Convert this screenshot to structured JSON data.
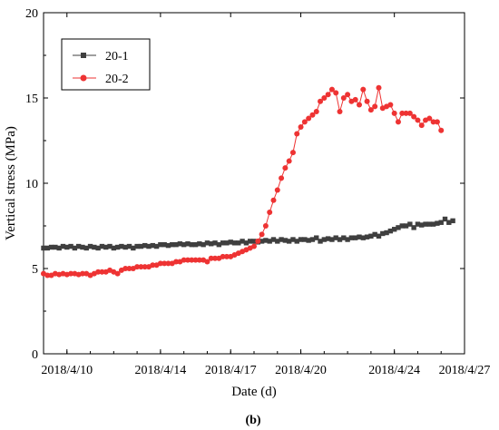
{
  "chart_data": {
    "type": "line",
    "title": "",
    "xlabel": "Date (d)",
    "ylabel": "Vertical stress (MPa)",
    "panel_label": "(b)",
    "xlim": [
      "2018-04-09",
      "2018-04-27"
    ],
    "ylim": [
      0,
      20
    ],
    "x_ticks": [
      {
        "date": "2018-04-10",
        "label": "2018/4/10"
      },
      {
        "date": "2018-04-14",
        "label": "2018/4/14"
      },
      {
        "date": "2018-04-17",
        "label": "2018/4/17"
      },
      {
        "date": "2018-04-20",
        "label": "2018/4/20"
      },
      {
        "date": "2018-04-24",
        "label": "2018/4/24"
      },
      {
        "date": "2018-04-27",
        "label": "2018/4/27"
      }
    ],
    "y_ticks": [
      0,
      5,
      10,
      15,
      20
    ],
    "legend_position": "top-left",
    "series": [
      {
        "name": "20-1",
        "color": "#3f3f3f",
        "marker": "square",
        "x": [
          "2018-04-09",
          "2018-04-09 04:00",
          "2018-04-09 08:00",
          "2018-04-09 12:00",
          "2018-04-09 16:00",
          "2018-04-09 20:00",
          "2018-04-10",
          "2018-04-10 04:00",
          "2018-04-10 08:00",
          "2018-04-10 12:00",
          "2018-04-10 16:00",
          "2018-04-10 20:00",
          "2018-04-11",
          "2018-04-11 04:00",
          "2018-04-11 08:00",
          "2018-04-11 12:00",
          "2018-04-11 16:00",
          "2018-04-11 20:00",
          "2018-04-12",
          "2018-04-12 04:00",
          "2018-04-12 08:00",
          "2018-04-12 12:00",
          "2018-04-12 16:00",
          "2018-04-12 20:00",
          "2018-04-13",
          "2018-04-13 04:00",
          "2018-04-13 08:00",
          "2018-04-13 12:00",
          "2018-04-13 16:00",
          "2018-04-13 20:00",
          "2018-04-14",
          "2018-04-14 04:00",
          "2018-04-14 08:00",
          "2018-04-14 12:00",
          "2018-04-14 16:00",
          "2018-04-14 20:00",
          "2018-04-15",
          "2018-04-15 04:00",
          "2018-04-15 08:00",
          "2018-04-15 12:00",
          "2018-04-15 16:00",
          "2018-04-15 20:00",
          "2018-04-16",
          "2018-04-16 04:00",
          "2018-04-16 08:00",
          "2018-04-16 12:00",
          "2018-04-16 16:00",
          "2018-04-16 20:00",
          "2018-04-17",
          "2018-04-17 04:00",
          "2018-04-17 08:00",
          "2018-04-17 12:00",
          "2018-04-17 16:00",
          "2018-04-17 20:00",
          "2018-04-18",
          "2018-04-18 04:00",
          "2018-04-18 08:00",
          "2018-04-18 12:00",
          "2018-04-18 16:00",
          "2018-04-18 20:00",
          "2018-04-19",
          "2018-04-19 04:00",
          "2018-04-19 08:00",
          "2018-04-19 12:00",
          "2018-04-19 16:00",
          "2018-04-19 20:00",
          "2018-04-20",
          "2018-04-20 04:00",
          "2018-04-20 08:00",
          "2018-04-20 12:00",
          "2018-04-20 16:00",
          "2018-04-20 20:00",
          "2018-04-21",
          "2018-04-21 04:00",
          "2018-04-21 08:00",
          "2018-04-21 12:00",
          "2018-04-21 16:00",
          "2018-04-21 20:00",
          "2018-04-22",
          "2018-04-22 04:00",
          "2018-04-22 08:00",
          "2018-04-22 12:00",
          "2018-04-22 16:00",
          "2018-04-22 20:00",
          "2018-04-23",
          "2018-04-23 04:00",
          "2018-04-23 08:00",
          "2018-04-23 12:00",
          "2018-04-23 16:00",
          "2018-04-23 20:00",
          "2018-04-24",
          "2018-04-24 04:00",
          "2018-04-24 08:00",
          "2018-04-24 12:00",
          "2018-04-24 16:00",
          "2018-04-24 20:00",
          "2018-04-25",
          "2018-04-25 04:00",
          "2018-04-25 08:00",
          "2018-04-25 12:00",
          "2018-04-25 16:00",
          "2018-04-25 20:00",
          "2018-04-26",
          "2018-04-26 04:00",
          "2018-04-26 08:00",
          "2018-04-26 12:00"
        ],
        "y": [
          6.2,
          6.2,
          6.25,
          6.25,
          6.2,
          6.3,
          6.25,
          6.3,
          6.2,
          6.3,
          6.25,
          6.2,
          6.3,
          6.25,
          6.2,
          6.3,
          6.25,
          6.3,
          6.2,
          6.25,
          6.3,
          6.25,
          6.3,
          6.2,
          6.3,
          6.3,
          6.35,
          6.3,
          6.35,
          6.3,
          6.4,
          6.4,
          6.35,
          6.4,
          6.4,
          6.45,
          6.4,
          6.45,
          6.4,
          6.4,
          6.45,
          6.4,
          6.5,
          6.45,
          6.5,
          6.4,
          6.5,
          6.5,
          6.55,
          6.5,
          6.5,
          6.6,
          6.5,
          6.6,
          6.6,
          6.55,
          6.6,
          6.65,
          6.6,
          6.7,
          6.6,
          6.7,
          6.65,
          6.6,
          6.7,
          6.6,
          6.7,
          6.7,
          6.65,
          6.7,
          6.8,
          6.6,
          6.7,
          6.75,
          6.7,
          6.8,
          6.7,
          6.8,
          6.7,
          6.8,
          6.8,
          6.85,
          6.8,
          6.85,
          6.9,
          7.0,
          6.9,
          7.05,
          7.1,
          7.2,
          7.3,
          7.4,
          7.5,
          7.5,
          7.6,
          7.4,
          7.6,
          7.55,
          7.6,
          7.6,
          7.6,
          7.65,
          7.7,
          7.9,
          7.7,
          7.8
        ],
        "x_start_date": "2018-04-09",
        "step_hours": 4
      },
      {
        "name": "20-2",
        "color": "#ee3333",
        "marker": "circle",
        "y": [
          4.7,
          4.6,
          4.6,
          4.7,
          4.65,
          4.7,
          4.65,
          4.7,
          4.7,
          4.65,
          4.7,
          4.7,
          4.6,
          4.7,
          4.8,
          4.8,
          4.8,
          4.9,
          4.8,
          4.7,
          4.9,
          5.0,
          5.0,
          5.0,
          5.1,
          5.1,
          5.1,
          5.1,
          5.2,
          5.2,
          5.3,
          5.3,
          5.3,
          5.3,
          5.4,
          5.4,
          5.5,
          5.5,
          5.5,
          5.5,
          5.5,
          5.5,
          5.4,
          5.6,
          5.6,
          5.6,
          5.7,
          5.7,
          5.7,
          5.8,
          5.9,
          6.0,
          6.1,
          6.2,
          6.3,
          6.6,
          7.0,
          7.5,
          8.3,
          9.0,
          9.6,
          10.3,
          10.9,
          11.3,
          11.8,
          12.9,
          13.3,
          13.6,
          13.8,
          14.0,
          14.2,
          14.8,
          15.0,
          15.2,
          15.5,
          15.3,
          14.2,
          15.0,
          15.2,
          14.8,
          14.9,
          14.6,
          15.5,
          14.8,
          14.3,
          14.5,
          15.6,
          14.4,
          14.5,
          14.6,
          14.1,
          13.6,
          14.1,
          14.1,
          14.1,
          13.9,
          13.7,
          13.4,
          13.7,
          13.8,
          13.6,
          13.6,
          13.1
        ],
        "x_start_date": "2018-04-09",
        "step_hours": 4
      }
    ]
  }
}
